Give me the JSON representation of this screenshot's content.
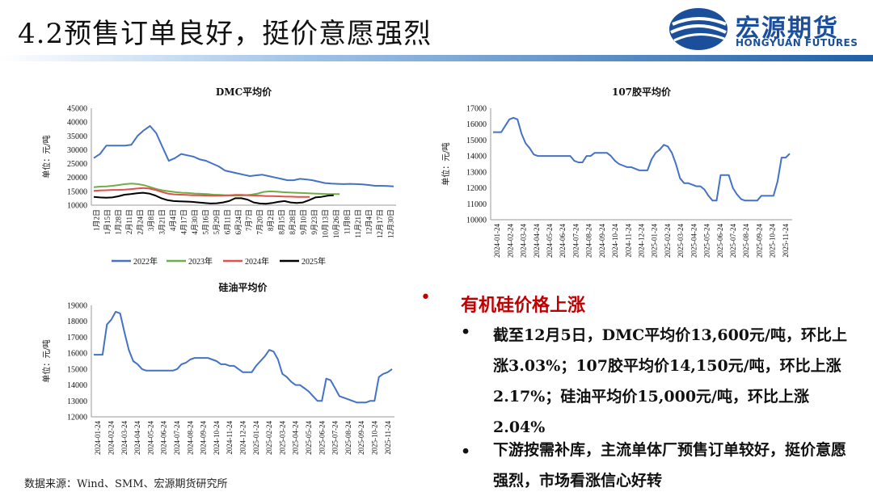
{
  "slide_title": "4.2预售订单良好，挺价意愿强烈",
  "logo": {
    "cn": "宏源期货",
    "en": "HONGYUAN FUTURES",
    "color": "#1b4f9c"
  },
  "bullets": {
    "heading": "有机硅价格上涨",
    "items": [
      "截至12月5日，DMC平均价13,600元/吨，环比上涨3.03%；107胶平均价14,150元/吨，环比上涨2.17%；硅油平均价15,000元/吨，环比上涨2.04%",
      "下游按需补库，主流单体厂预售订单较好，挺价意愿强烈，市场看涨信心好转"
    ]
  },
  "source": "数据来源：Wind、SMM、宏源期货研究所",
  "chart_data": [
    {
      "type": "line",
      "title": "DMC平均价",
      "ylabel": "单位：元/吨",
      "ylim": [
        10000,
        45000
      ],
      "yticks": [
        10000,
        15000,
        20000,
        25000,
        30000,
        35000,
        40000,
        45000
      ],
      "xticks": [
        "1月2日",
        "1月15日",
        "1月28日",
        "2月11日",
        "2月24日",
        "3月8日",
        "3月21日",
        "4月4日",
        "4月17日",
        "4月30日",
        "5月16日",
        "5月29日",
        "6月11日",
        "6月24日",
        "7月7日",
        "7月20日",
        "8月2日",
        "8月15日",
        "8月28日",
        "9月10日",
        "9月23日",
        "10月13日",
        "10月26日",
        "11月8日",
        "11月21日",
        "12月4日",
        "12月17日",
        "12月30日"
      ],
      "legend": "bottom",
      "series": [
        {
          "name": "2022年",
          "color": "#4472c4",
          "values": [
            27000,
            28500,
            31500,
            31500,
            31500,
            31500,
            31800,
            35000,
            37000,
            38600,
            36000,
            31000,
            26000,
            27000,
            28500,
            28000,
            27500,
            26500,
            26000,
            25000,
            24000,
            22500,
            22000,
            21500,
            21000,
            20500,
            20800,
            21000,
            20500,
            20000,
            19500,
            19000,
            19000,
            19500,
            19300,
            19000,
            18500,
            18000,
            17800,
            17700,
            17600,
            17700,
            17600,
            17500,
            17300,
            17000,
            17000,
            16900,
            16800
          ]
        },
        {
          "name": "2023年",
          "color": "#70ad47",
          "values": [
            16500,
            16700,
            16800,
            17000,
            17300,
            17600,
            17800,
            17600,
            17200,
            16500,
            15800,
            15300,
            15000,
            14700,
            14500,
            14400,
            14200,
            14100,
            14000,
            13800,
            13700,
            13600,
            13500,
            13500,
            13600,
            13800,
            14200,
            14800,
            15000,
            14900,
            14700,
            14600,
            14500,
            14400,
            14300,
            14200,
            14100,
            14000,
            14000,
            14000
          ]
        },
        {
          "name": "2024年",
          "color": "#e05050",
          "values": [
            15200,
            15300,
            15400,
            15500,
            15500,
            15600,
            15800,
            16000,
            16200,
            16000,
            15500,
            14800,
            14200,
            13900,
            13800,
            13700,
            13600,
            13600,
            13500,
            13400,
            13400,
            13500,
            13600,
            13700,
            13700,
            13600,
            13500,
            13400,
            13300,
            13300,
            13200,
            13100,
            13100,
            13000,
            13000,
            13000
          ]
        },
        {
          "name": "2025年",
          "color": "#000000",
          "values": [
            13000,
            12800,
            12700,
            12800,
            13200,
            13800,
            14000,
            14300,
            14500,
            14200,
            13500,
            12500,
            11800,
            11500,
            11400,
            11300,
            11200,
            11000,
            10800,
            10600,
            10700,
            11000,
            11500,
            12500,
            12500,
            12000,
            11000,
            10600,
            10500,
            10800,
            11200,
            11500,
            11000,
            10800,
            11000,
            11800,
            12800,
            13000,
            13400,
            13600
          ]
        }
      ]
    },
    {
      "type": "line",
      "title": "107胶平均价",
      "ylabel": "单位：元/吨",
      "ylim": [
        10000,
        17000
      ],
      "yticks": [
        10000,
        11000,
        12000,
        13000,
        14000,
        15000,
        16000,
        17000
      ],
      "xticks": [
        "2024-01-24",
        "2024-02-24",
        "2024-03-24",
        "2024-04-24",
        "2024-05-24",
        "2024-06-24",
        "2024-07-24",
        "2024-08-24",
        "2024-09-24",
        "2024-10-24",
        "2024-11-24",
        "2024-12-24",
        "2025-01-24",
        "2025-02-24",
        "2025-03-24",
        "2025-04-24",
        "2025-05-24",
        "2025-06-24",
        "2025-07-24",
        "2025-08-24",
        "2025-09-24",
        "2025-10-24",
        "2025-11-24"
      ],
      "series": [
        {
          "name": "",
          "color": "#4472c4",
          "values": [
            15500,
            15500,
            15500,
            15900,
            16300,
            16400,
            16300,
            15400,
            14800,
            14500,
            14100,
            14000,
            14000,
            14000,
            14000,
            14000,
            14000,
            14000,
            14000,
            14000,
            13700,
            13600,
            13600,
            14000,
            14000,
            14200,
            14200,
            14200,
            14200,
            14000,
            13700,
            13500,
            13400,
            13300,
            13300,
            13200,
            13100,
            13100,
            13100,
            13800,
            14200,
            14400,
            14700,
            14600,
            14200,
            13500,
            12600,
            12300,
            12300,
            12200,
            12100,
            12100,
            11900,
            11500,
            11200,
            11200,
            12800,
            12800,
            12800,
            12000,
            11600,
            11300,
            11200,
            11200,
            11200,
            11200,
            11500,
            11500,
            11500,
            11500,
            12400,
            13900,
            13900,
            14150
          ]
        }
      ]
    },
    {
      "type": "line",
      "title": "硅油平均价",
      "ylabel": "单位：元/吨",
      "ylim": [
        12000,
        19000
      ],
      "yticks": [
        12000,
        13000,
        14000,
        15000,
        16000,
        17000,
        18000,
        19000
      ],
      "xticks": [
        "2024-01-24",
        "2024-02-24",
        "2024-03-24",
        "2024-04-24",
        "2024-05-24",
        "2024-06-24",
        "2024-07-24",
        "2024-08-24",
        "2024-09-24",
        "2024-10-24",
        "2024-11-24",
        "2024-12-24",
        "2025-01-24",
        "2025-02-24",
        "2025-03-24",
        "2025-04-24",
        "2025-05-24",
        "2025-06-24",
        "2025-07-24",
        "2025-08-24",
        "2025-09-24",
        "2025-10-24",
        "2025-11-24"
      ],
      "series": [
        {
          "name": "",
          "color": "#4472c4",
          "values": [
            15900,
            15900,
            15900,
            17800,
            18100,
            18600,
            18500,
            17300,
            16200,
            15500,
            15300,
            15000,
            14900,
            14900,
            14900,
            14900,
            14900,
            14900,
            14900,
            15000,
            15300,
            15400,
            15600,
            15700,
            15700,
            15700,
            15700,
            15600,
            15500,
            15300,
            15300,
            15200,
            15200,
            15000,
            14800,
            14800,
            14800,
            15200,
            15500,
            15800,
            16200,
            16100,
            15600,
            14700,
            14500,
            14200,
            14000,
            14000,
            13800,
            13600,
            13300,
            13000,
            13000,
            14400,
            14300,
            13800,
            13300,
            13200,
            13100,
            13000,
            12900,
            12900,
            12900,
            13000,
            13000,
            14500,
            14700,
            14800,
            15000
          ]
        }
      ]
    }
  ]
}
